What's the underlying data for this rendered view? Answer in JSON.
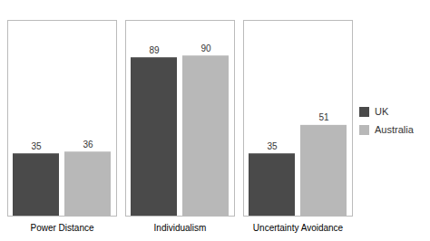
{
  "chart_data": {
    "type": "bar",
    "categories": [
      "Power Distance",
      "Individualism",
      "Uncertainty Avoidance"
    ],
    "series": [
      {
        "name": "UK",
        "color": "#4a4a4a",
        "values": [
          35,
          89,
          35
        ]
      },
      {
        "name": "Australia",
        "color": "#b8b8b8",
        "values": [
          36,
          90,
          51
        ]
      }
    ],
    "ylim": [
      0,
      110
    ],
    "yticks": [],
    "data_labels": true,
    "tick_labels": "x",
    "legend": "right",
    "grid": false
  }
}
